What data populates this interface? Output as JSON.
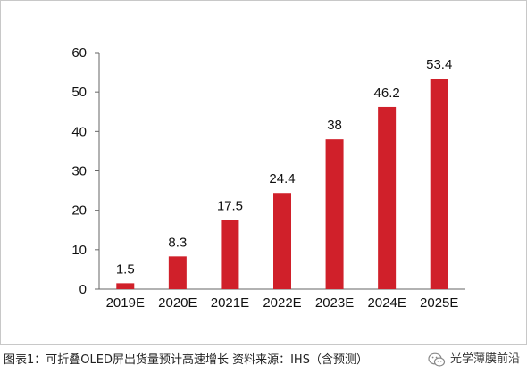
{
  "chart_data": {
    "type": "bar",
    "title": "",
    "xlabel": "",
    "ylabel": "",
    "categories": [
      "2019E",
      "2020E",
      "2021E",
      "2022E",
      "2023E",
      "2024E",
      "2025E"
    ],
    "values": [
      1.5,
      8.3,
      17.5,
      24.4,
      38,
      46.2,
      53.4
    ],
    "data_labels": [
      "1.5",
      "8.3",
      "17.5",
      "24.4",
      "38",
      "46.2",
      "53.4"
    ],
    "yticks": [
      0,
      10,
      20,
      30,
      40,
      50,
      60
    ],
    "ylim": [
      0,
      60
    ],
    "grid": false,
    "legend": "none",
    "bar_color": "#d0202a"
  },
  "caption": "图表1：可折叠OLED屏出货量预计高速增长  资料来源：IHS（含预测）",
  "watermark": {
    "icon": "wechat-icon",
    "text": "光学薄膜前沿"
  }
}
